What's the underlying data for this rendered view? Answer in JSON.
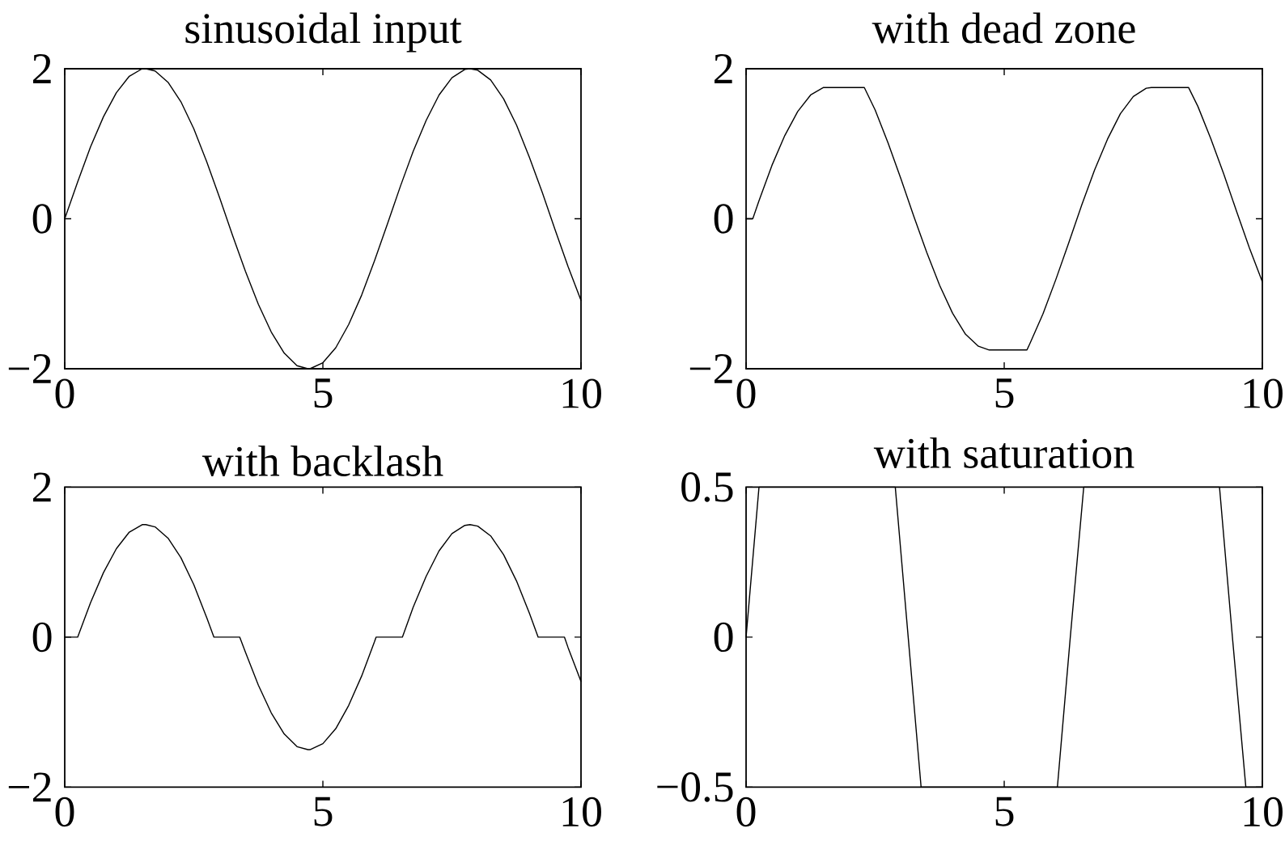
{
  "chart_data": [
    {
      "type": "line",
      "title": "sinusoidal input",
      "color": "#000000",
      "xlim": [
        0,
        10
      ],
      "ylim": [
        -2,
        2
      ],
      "xticks": [
        0,
        5,
        10
      ],
      "yticks": [
        -2,
        0,
        2
      ],
      "x": [
        0,
        0.25,
        0.5,
        0.75,
        1,
        1.25,
        1.5,
        1.57,
        1.75,
        2,
        2.25,
        2.5,
        2.75,
        3,
        3.25,
        3.5,
        3.75,
        4,
        4.25,
        4.5,
        4.71,
        4.75,
        5,
        5.25,
        5.5,
        5.75,
        6,
        6.25,
        6.5,
        6.75,
        7,
        7.25,
        7.5,
        7.75,
        7.85,
        8,
        8.25,
        8.5,
        8.75,
        9,
        9.25,
        9.5,
        9.75,
        10
      ],
      "values": [
        0,
        0.49,
        0.96,
        1.36,
        1.68,
        1.9,
        2,
        2,
        1.97,
        1.82,
        1.56,
        1.2,
        0.76,
        0.28,
        -0.22,
        -0.7,
        -1.14,
        -1.51,
        -1.79,
        -1.96,
        -2,
        -2,
        -1.92,
        -1.72,
        -1.41,
        -1.02,
        -0.56,
        -0.07,
        0.43,
        0.9,
        1.31,
        1.65,
        1.88,
        1.99,
        2,
        1.98,
        1.85,
        1.6,
        1.25,
        0.82,
        0.35,
        -0.15,
        -0.64,
        -1.09
      ]
    },
    {
      "type": "line",
      "title": "with dead zone",
      "color": "#000000",
      "xlim": [
        0,
        10
      ],
      "ylim": [
        -2,
        2
      ],
      "xticks": [
        0,
        5,
        10
      ],
      "yticks": [
        -2,
        0,
        2
      ],
      "x": [
        0,
        0.13,
        0.25,
        0.5,
        0.75,
        1,
        1.25,
        1.5,
        1.57,
        2.29,
        2.5,
        2.75,
        3,
        3.25,
        3.5,
        3.75,
        4,
        4.25,
        4.5,
        4.71,
        5.44,
        5.5,
        5.75,
        6,
        6.25,
        6.5,
        6.75,
        7,
        7.25,
        7.5,
        7.75,
        7.85,
        8.57,
        8.75,
        9,
        9.25,
        9.5,
        9.75,
        10
      ],
      "values": [
        0,
        0,
        0.24,
        0.71,
        1.11,
        1.43,
        1.65,
        1.75,
        1.75,
        1.75,
        1.45,
        1.01,
        0.53,
        0.03,
        -0.45,
        -0.89,
        -1.26,
        -1.54,
        -1.7,
        -1.75,
        -1.75,
        -1.66,
        -1.27,
        -0.81,
        -0.32,
        0.18,
        0.65,
        1.06,
        1.4,
        1.63,
        1.74,
        1.75,
        1.75,
        1.5,
        1.07,
        0.6,
        0.1,
        -0.39,
        -0.84
      ]
    },
    {
      "type": "line",
      "title": "with backlash",
      "color": "#000000",
      "xlim": [
        0,
        10
      ],
      "ylim": [
        -2,
        2
      ],
      "xticks": [
        0,
        5,
        10
      ],
      "yticks": [
        -2,
        0,
        2
      ],
      "x": [
        0,
        0.25,
        0.5,
        0.75,
        1,
        1.25,
        1.5,
        1.57,
        1.75,
        2,
        2.25,
        2.5,
        2.75,
        2.89,
        3.39,
        3.5,
        3.75,
        4,
        4.25,
        4.5,
        4.71,
        4.75,
        5,
        5.25,
        5.5,
        5.75,
        6,
        6.03,
        6.54,
        6.75,
        7,
        7.25,
        7.5,
        7.75,
        7.85,
        8,
        8.25,
        8.5,
        8.75,
        9,
        9.17,
        9.68,
        9.75,
        10
      ],
      "values": [
        0,
        0,
        0.46,
        0.86,
        1.18,
        1.4,
        1.5,
        1.5,
        1.47,
        1.32,
        1.06,
        0.7,
        0.26,
        0,
        0,
        -0.2,
        -0.64,
        -1.01,
        -1.29,
        -1.46,
        -1.5,
        -1.5,
        -1.42,
        -1.22,
        -0.91,
        -0.52,
        -0.06,
        0,
        0,
        0.4,
        0.81,
        1.15,
        1.38,
        1.49,
        1.5,
        1.48,
        1.35,
        1.1,
        0.75,
        0.32,
        0,
        0,
        -0.14,
        -0.59
      ]
    },
    {
      "type": "line",
      "title": "with saturation",
      "color": "#000000",
      "xlim": [
        0,
        10
      ],
      "ylim": [
        -0.5,
        0.5
      ],
      "xticks": [
        0,
        5,
        10
      ],
      "yticks": [
        -0.5,
        0,
        0.5
      ],
      "x": [
        0,
        0.25,
        2.89,
        3,
        3.14,
        3.25,
        3.39,
        6.03,
        6.28,
        6.54,
        9.17,
        9.42,
        9.68,
        10
      ],
      "values": [
        0,
        0.5,
        0.5,
        0.28,
        0,
        -0.22,
        -0.5,
        -0.5,
        0,
        0.5,
        0.5,
        0,
        -0.5,
        -0.5
      ]
    }
  ]
}
